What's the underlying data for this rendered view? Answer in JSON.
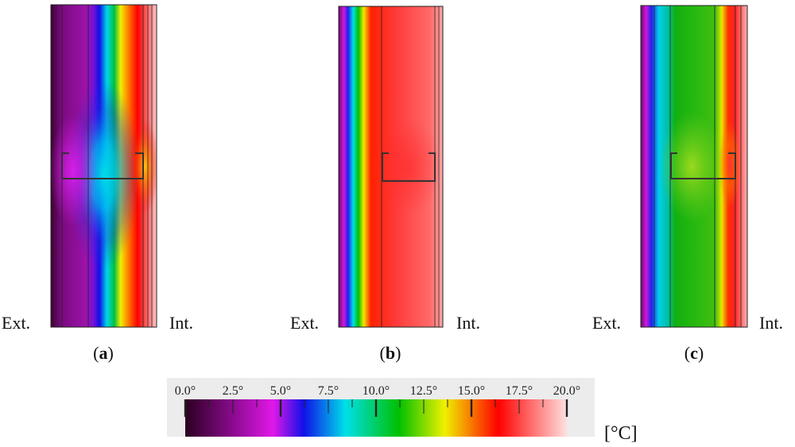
{
  "panels": [
    {
      "id": "a",
      "ext_label": "Ext.",
      "int_label": "Int.",
      "caption_open": "(",
      "caption_letter": "a",
      "caption_close": ")"
    },
    {
      "id": "b",
      "ext_label": "Ext.",
      "int_label": "Int.",
      "caption_open": "(",
      "caption_letter": "b",
      "caption_close": ")"
    },
    {
      "id": "c",
      "ext_label": "Ext.",
      "int_label": "Int.",
      "caption_open": "(",
      "caption_letter": "c",
      "caption_close": ")"
    }
  ],
  "legend": {
    "ticks": [
      "0.0°",
      "2.5°",
      "5.0°",
      "7.5°",
      "10.0°",
      "12.5°",
      "15.0°",
      "17.5°",
      "20.0°"
    ],
    "unit": "[°C]",
    "colors": [
      "#2a0020",
      "#8a0a8e",
      "#e018e8",
      "#1010e8",
      "#00e0e8",
      "#00c000",
      "#f0f000",
      "#ff0000",
      "#ffe0e0"
    ]
  }
}
